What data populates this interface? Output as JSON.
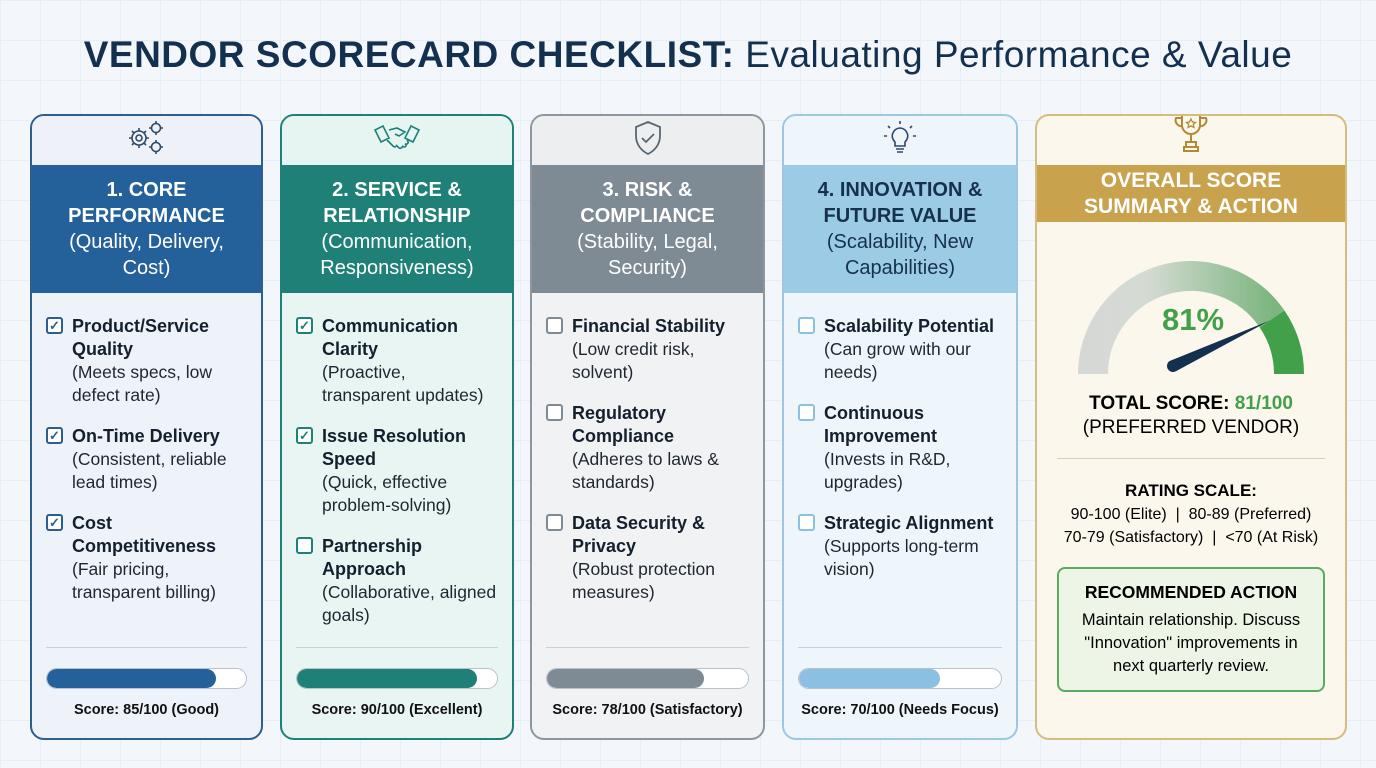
{
  "title": {
    "bold": "VENDOR SCORECARD CHECKLIST:",
    "light": "Evaluating Performance & Value"
  },
  "columns": [
    {
      "icon": "gears-icon",
      "title": "1. CORE PERFORMANCE",
      "subtitle": "(Quality, Delivery, Cost)",
      "header_color": "#24609a",
      "border_color": "#2c5e8f",
      "body_color": "#eef3fa",
      "icon_bg": "#eef2f8",
      "text_color": "#ffffff",
      "check_color": "#2c5e8f",
      "bar_color": "#24609a",
      "score_pct": 85,
      "score": "Score: 85/100 (Good)",
      "items": [
        {
          "checked": true,
          "title": "Product/Service Quality",
          "desc": "(Meets specs, low defect rate)"
        },
        {
          "checked": true,
          "title": "On-Time Delivery",
          "desc": "(Consistent, reliable lead times)"
        },
        {
          "checked": true,
          "title": "Cost Competitiveness",
          "desc": "(Fair pricing, transparent billing)"
        }
      ]
    },
    {
      "icon": "handshake-icon",
      "title": "2. SERVICE & RELATIONSHIP",
      "subtitle": "(Communication, Responsiveness)",
      "header_color": "#1f8077",
      "border_color": "#1f8077",
      "body_color": "#e9f5f3",
      "icon_bg": "#e6f5f1",
      "text_color": "#ffffff",
      "check_color": "#1f8077",
      "bar_color": "#1f8077",
      "score_pct": 90,
      "score": "Score: 90/100 (Excellent)",
      "items": [
        {
          "checked": true,
          "title": "Communication Clarity",
          "desc": "(Proactive, transparent updates)"
        },
        {
          "checked": true,
          "title": "Issue Resolution Speed",
          "desc": "(Quick, effective problem-solving)"
        },
        {
          "checked": false,
          "title": "Partnership Approach",
          "desc": "(Collaborative, aligned goals)"
        }
      ]
    },
    {
      "icon": "shield-check-icon",
      "title": "3. RISK & COMPLIANCE",
      "subtitle": "(Stability, Legal, Security)",
      "header_color": "#7e8a94",
      "border_color": "#8e979f",
      "body_color": "#f1f2f4",
      "icon_bg": "#eceef0",
      "text_color": "#ffffff",
      "check_color": "#7e8a94",
      "bar_color": "#7e8a94",
      "score_pct": 78,
      "score": "Score: 78/100 (Satisfactory)",
      "items": [
        {
          "checked": false,
          "title": "Financial Stability",
          "desc": "(Low credit risk, solvent)"
        },
        {
          "checked": false,
          "title": "Regulatory Compliance",
          "desc": "(Adheres to laws & standards)"
        },
        {
          "checked": false,
          "title": "Data Security & Privacy",
          "desc": "(Robust protection measures)"
        }
      ]
    },
    {
      "icon": "lightbulb-icon",
      "title": "4. INNOVATION & FUTURE VALUE",
      "subtitle": "(Scalability, New Capabilities)",
      "header_color": "#9ccbe6",
      "border_color": "#9cc8e4",
      "body_color": "#eef5fb",
      "icon_bg": "#eef5fb",
      "text_color": "#16314f",
      "check_color": "#8cbfe0",
      "bar_color": "#8cc0e2",
      "score_pct": 70,
      "score": "Score: 70/100 (Needs Focus)",
      "items": [
        {
          "checked": false,
          "title": "Scalability Potential",
          "desc": "(Can grow with our needs)"
        },
        {
          "checked": false,
          "title": "Continuous Improvement",
          "desc": "(Invests in R&D, upgrades)"
        },
        {
          "checked": false,
          "title": "Strategic Alignment",
          "desc": "(Supports long-term vision)"
        }
      ]
    }
  ],
  "summary": {
    "icon": "trophy-icon",
    "title": "OVERALL SCORE SUMMARY & ACTION",
    "gauge_value": 81,
    "gauge_label": "81%",
    "total_label": "TOTAL SCORE:",
    "total_value": "81/100",
    "status": "(PREFERRED VENDOR)",
    "rating_title": "RATING SCALE:",
    "rating_line1": "90-100 (Elite)  |  80-89 (Preferred)",
    "rating_line2": "70-79 (Satisfactory)  |  <70 (At Risk)",
    "action_title": "RECOMMENDED ACTION",
    "action_text": "Maintain relationship. Discuss \"Innovation\" improvements in next quarterly review.",
    "colors": {
      "header": "#c9a24e",
      "green": "#43a04a",
      "needle": "#13304f"
    }
  }
}
